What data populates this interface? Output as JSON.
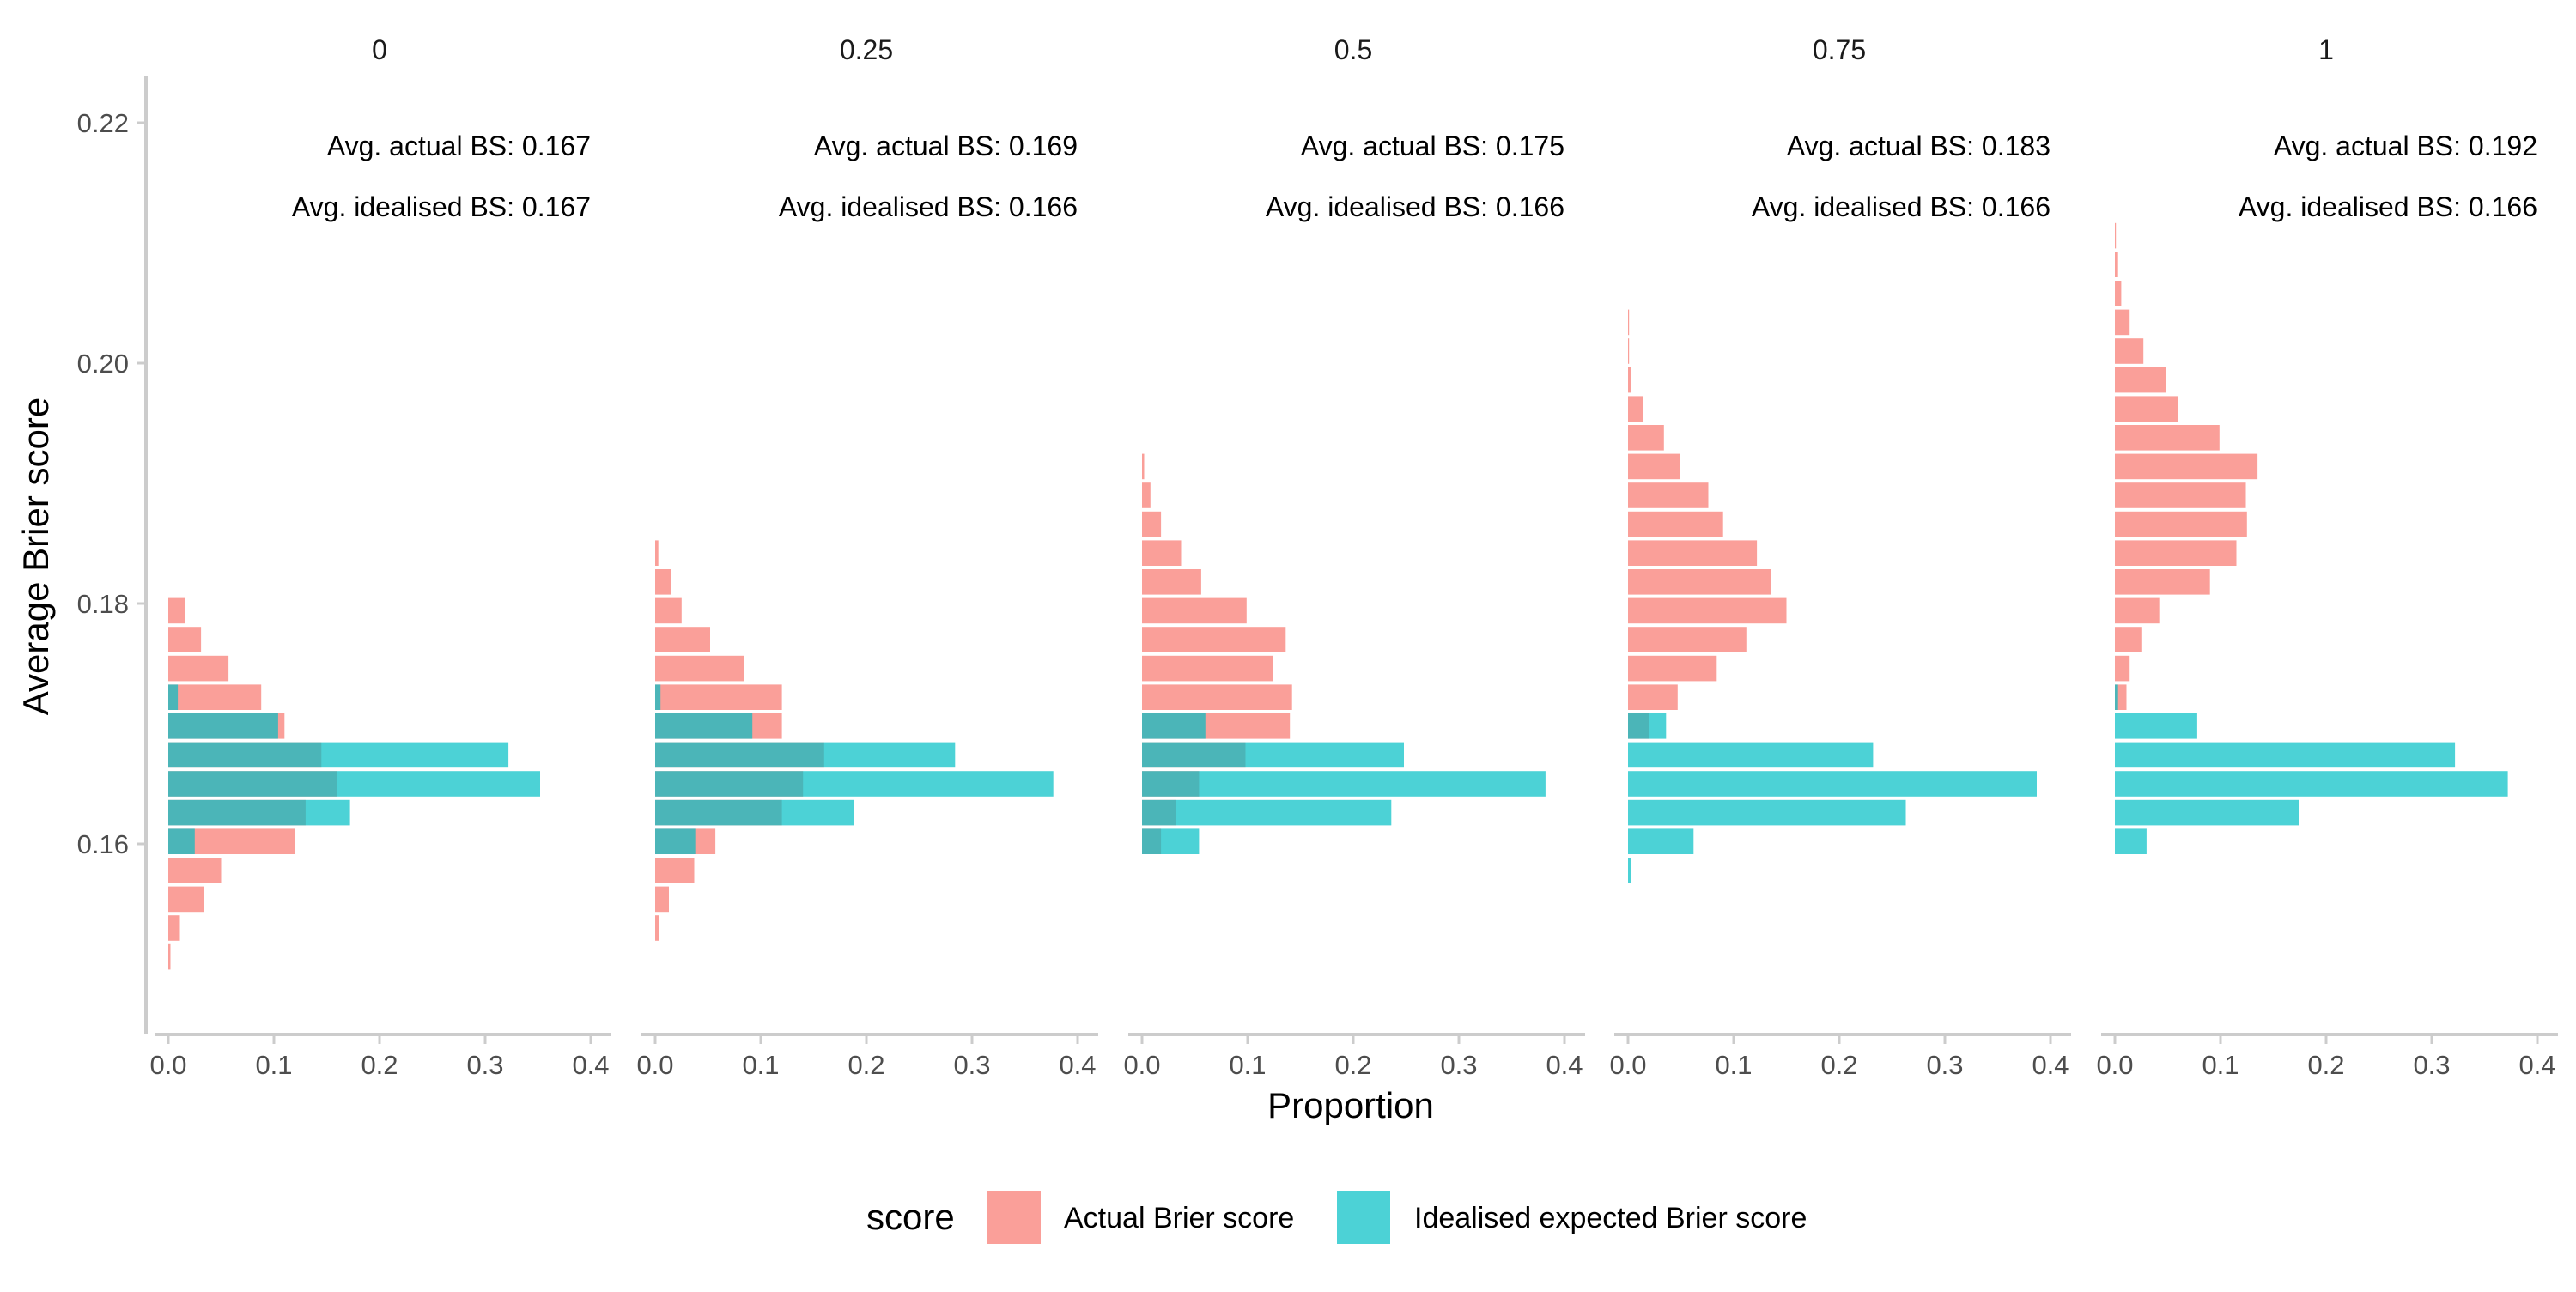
{
  "chart_data": {
    "type": "bar",
    "orientation": "horizontal",
    "facet_variable": "",
    "xlabel": "Proportion",
    "ylabel": "Average Brier score",
    "xlim": [
      0,
      0.4
    ],
    "ylim": [
      0.15,
      0.22
    ],
    "x_ticks": [
      "0.0",
      "0.1",
      "0.2",
      "0.3",
      "0.4"
    ],
    "y_ticks": [
      "0.16",
      "0.18",
      "0.20",
      "0.22"
    ],
    "y_tick_values": [
      0.16,
      0.18,
      0.2,
      0.22
    ],
    "bin_width": 0.0024,
    "grid": false,
    "legend": {
      "title": "score",
      "position": "bottom",
      "entries": [
        {
          "label": "Actual Brier score",
          "color": "#F8766D"
        },
        {
          "label": "Idealised expected Brier score",
          "color": "#00BFC4"
        }
      ]
    },
    "panels": [
      {
        "label": "0",
        "annotation_actual": "Avg. actual BS: 0.167",
        "annotation_idealised": "Avg. idealised BS: 0.167",
        "series": [
          {
            "name": "Actual Brier score",
            "y": [
              0.1506,
              0.153,
              0.1554,
              0.1578,
              0.1602,
              0.1626,
              0.165,
              0.1674,
              0.1698,
              0.1722,
              0.1746,
              0.177,
              0.1794
            ],
            "values": [
              0.002,
              0.011,
              0.034,
              0.05,
              0.12,
              0.13,
              0.16,
              0.145,
              0.11,
              0.088,
              0.057,
              0.031,
              0.016
            ]
          },
          {
            "name": "Idealised expected Brier score",
            "y": [
              0.1602,
              0.1626,
              0.165,
              0.1674,
              0.1698,
              0.1722
            ],
            "values": [
              0.025,
              0.172,
              0.352,
              0.322,
              0.104,
              0.009
            ]
          }
        ]
      },
      {
        "label": "0.25",
        "annotation_actual": "Avg. actual BS: 0.169",
        "annotation_idealised": "Avg. idealised BS: 0.166",
        "series": [
          {
            "name": "Actual Brier score",
            "y": [
              0.153,
              0.1554,
              0.1578,
              0.1602,
              0.1626,
              0.165,
              0.1674,
              0.1698,
              0.1722,
              0.1746,
              0.177,
              0.1794,
              0.1818,
              0.1842
            ],
            "values": [
              0.004,
              0.013,
              0.037,
              0.057,
              0.12,
              0.14,
              0.16,
              0.12,
              0.12,
              0.084,
              0.052,
              0.025,
              0.015,
              0.003
            ]
          },
          {
            "name": "Idealised expected Brier score",
            "y": [
              0.1602,
              0.1626,
              0.165,
              0.1674,
              0.1698,
              0.1722
            ],
            "values": [
              0.038,
              0.188,
              0.377,
              0.284,
              0.092,
              0.005
            ]
          }
        ]
      },
      {
        "label": "0.5",
        "annotation_actual": "Avg. actual BS: 0.175",
        "annotation_idealised": "Avg. idealised BS: 0.166",
        "series": [
          {
            "name": "Actual Brier score",
            "y": [
              0.1602,
              0.1626,
              0.165,
              0.1674,
              0.1698,
              0.1722,
              0.1746,
              0.177,
              0.1794,
              0.1818,
              0.1842,
              0.1866,
              0.189,
              0.1914
            ],
            "values": [
              0.018,
              0.032,
              0.054,
              0.098,
              0.14,
              0.142,
              0.124,
              0.136,
              0.099,
              0.056,
              0.037,
              0.018,
              0.008,
              0.002
            ]
          },
          {
            "name": "Idealised expected Brier score",
            "y": [
              0.1602,
              0.1626,
              0.165,
              0.1674,
              0.1698
            ],
            "values": [
              0.054,
              0.236,
              0.382,
              0.248,
              0.06
            ]
          }
        ]
      },
      {
        "label": "0.75",
        "annotation_actual": "Avg. actual BS: 0.183",
        "annotation_idealised": "Avg. idealised BS: 0.166",
        "series": [
          {
            "name": "Actual Brier score",
            "y": [
              0.1698,
              0.1722,
              0.1746,
              0.177,
              0.1794,
              0.1818,
              0.1842,
              0.1866,
              0.189,
              0.1914,
              0.1938,
              0.1962,
              0.1986,
              0.201,
              0.2034
            ],
            "values": [
              0.02,
              0.047,
              0.084,
              0.112,
              0.15,
              0.135,
              0.122,
              0.09,
              0.076,
              0.049,
              0.034,
              0.014,
              0.003,
              0.001,
              0.001
            ]
          },
          {
            "name": "Idealised expected Brier score",
            "y": [
              0.1578,
              0.1602,
              0.1626,
              0.165,
              0.1674,
              0.1698
            ],
            "values": [
              0.003,
              0.062,
              0.263,
              0.387,
              0.232,
              0.036
            ]
          }
        ]
      },
      {
        "label": "1",
        "annotation_actual": "Avg. actual BS: 0.192",
        "annotation_idealised": "Avg. idealised BS: 0.166",
        "series": [
          {
            "name": "Actual Brier score",
            "y": [
              0.1722,
              0.1746,
              0.177,
              0.1794,
              0.1818,
              0.1842,
              0.1866,
              0.189,
              0.1914,
              0.1938,
              0.1962,
              0.1986,
              0.201,
              0.2034,
              0.2058,
              0.2082,
              0.2106
            ],
            "values": [
              0.011,
              0.014,
              0.025,
              0.042,
              0.09,
              0.115,
              0.125,
              0.124,
              0.135,
              0.099,
              0.06,
              0.048,
              0.027,
              0.014,
              0.006,
              0.003,
              0.001
            ]
          },
          {
            "name": "Idealised expected Brier score",
            "y": [
              0.1602,
              0.1626,
              0.165,
              0.1674,
              0.1698,
              0.1722
            ],
            "values": [
              0.03,
              0.174,
              0.372,
              0.322,
              0.078,
              0.003
            ]
          }
        ]
      }
    ]
  }
}
